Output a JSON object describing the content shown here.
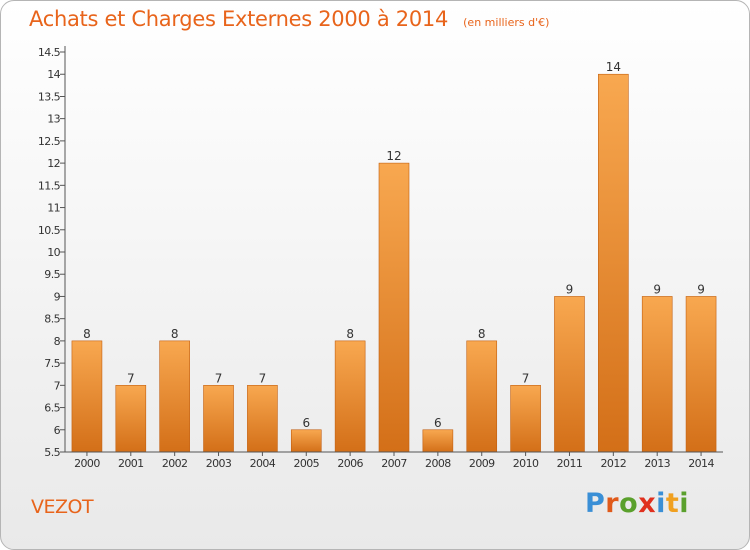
{
  "header": {
    "title": "Achats et Charges Externes 2000 à 2014",
    "subtitle": "(en milliers d'€)"
  },
  "footer": {
    "commune": "VEZOT",
    "brand": "Proxiti",
    "brand_letters": [
      "P",
      "r",
      "o",
      "x",
      "i",
      "t",
      "i"
    ],
    "brand_colors": [
      "#3a8fd6",
      "#e05a1a",
      "#5aa02c",
      "#e0301e",
      "#3a8fd6",
      "#f0a020",
      "#5aa02c"
    ]
  },
  "colors": {
    "bar_light": "#f8a850",
    "bar_dark": "#d36f18",
    "bar_border": "#c25f10",
    "axis": "#555555",
    "accent": "#e8641b"
  },
  "chart_data": {
    "type": "bar",
    "title": "Achats et Charges Externes 2000 à 2014",
    "subtitle": "(en milliers d'€)",
    "categories": [
      "2000",
      "2001",
      "2002",
      "2003",
      "2004",
      "2005",
      "2006",
      "2007",
      "2008",
      "2009",
      "2010",
      "2011",
      "2012",
      "2013",
      "2014"
    ],
    "values": [
      8,
      7,
      8,
      7,
      7,
      6,
      8,
      12,
      6,
      8,
      7,
      9,
      14,
      9,
      9
    ],
    "data_labels": [
      "8",
      "7",
      "8",
      "7",
      "7",
      "6",
      "8",
      "12",
      "6",
      "8",
      "7",
      "9",
      "14",
      "9",
      "9"
    ],
    "ylim": [
      5.5,
      14.5
    ],
    "yticks": [
      5.5,
      6,
      6.5,
      7,
      7.5,
      8,
      8.5,
      9,
      9.5,
      10,
      10.5,
      11,
      11.5,
      12,
      12.5,
      13,
      13.5,
      14,
      14.5
    ],
    "ytick_labels": [
      "5.5",
      "6",
      "6.5",
      "7",
      "7.5",
      "8",
      "8.5",
      "9",
      "9.5",
      "10",
      "10.5",
      "11",
      "11.5",
      "12",
      "12.5",
      "13",
      "13.5",
      "14",
      "14.5"
    ],
    "xlabel": "",
    "ylabel": "",
    "grid": false,
    "legend": "none"
  }
}
